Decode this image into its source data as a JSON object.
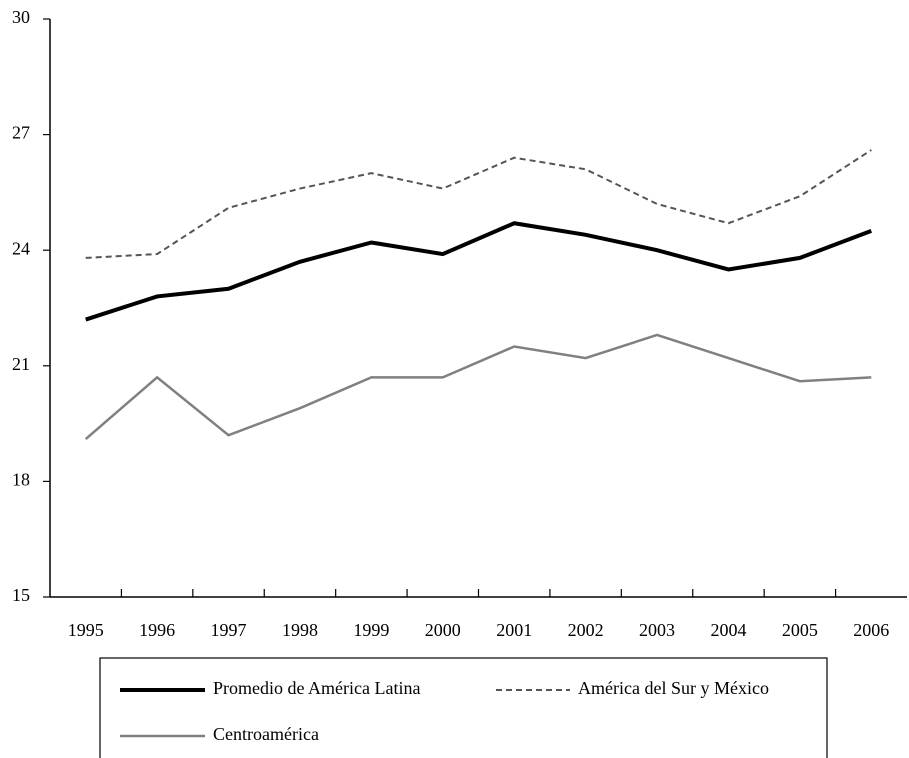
{
  "chart_data": {
    "type": "line",
    "categories": [
      "1995",
      "1996",
      "1997",
      "1998",
      "1999",
      "2000",
      "2001",
      "2002",
      "2003",
      "2004",
      "2005",
      "2006"
    ],
    "series": [
      {
        "name": "Promedio de América Latina",
        "color": "#000000",
        "dash": "solid",
        "width": 4,
        "values": [
          22.2,
          22.8,
          23.0,
          23.7,
          24.2,
          23.9,
          24.7,
          24.4,
          24.0,
          23.5,
          23.8,
          24.5
        ]
      },
      {
        "name": "América del Sur y México",
        "color": "#555555",
        "dash": "dashed",
        "width": 2,
        "values": [
          23.8,
          23.9,
          25.1,
          25.6,
          26.0,
          25.6,
          26.4,
          26.1,
          25.2,
          24.7,
          25.4,
          26.6
        ]
      },
      {
        "name": "Centroamérica",
        "color": "#808080",
        "dash": "solid",
        "width": 2.5,
        "values": [
          19.1,
          20.7,
          19.2,
          19.9,
          20.7,
          20.7,
          21.5,
          21.2,
          21.8,
          21.2,
          20.6,
          20.7
        ]
      }
    ],
    "ylim": [
      15,
      30
    ],
    "yticks": [
      15,
      18,
      21,
      24,
      27,
      30
    ],
    "legend": "bottom"
  }
}
